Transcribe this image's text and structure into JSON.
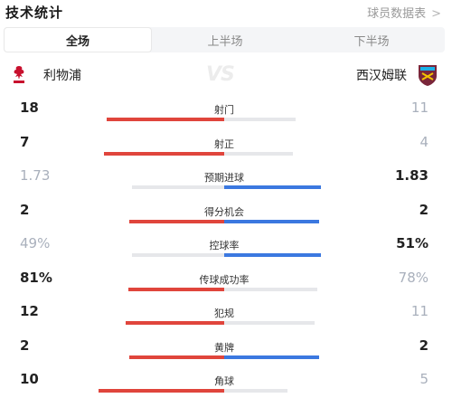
{
  "header": {
    "title": "技术统计",
    "link_label": "球员数据表",
    "link_icon": "chevron-right-icon"
  },
  "tabs": [
    {
      "label": "全场",
      "active": true
    },
    {
      "label": "上半场",
      "active": false
    },
    {
      "label": "下半场",
      "active": false
    }
  ],
  "teams": {
    "home": {
      "name": "利物浦",
      "crest": "liverpool-crest",
      "color": "#c8102e"
    },
    "vs": "VS",
    "away": {
      "name": "西汉姆联",
      "crest": "west-ham-crest",
      "color": "#7a263a"
    }
  },
  "colors": {
    "home_bar": "#e0453c",
    "away_bar": "#3b78e0",
    "empty_bar": "#e6e7ea"
  },
  "stats": [
    {
      "label": "射门",
      "home": "18",
      "away": "11",
      "home_value": 18,
      "away_value": 11
    },
    {
      "label": "射正",
      "home": "7",
      "away": "4",
      "home_value": 7,
      "away_value": 4
    },
    {
      "label": "预期进球",
      "home": "1.73",
      "away": "1.83",
      "home_value": 1.73,
      "away_value": 1.83
    },
    {
      "label": "得分机会",
      "home": "2",
      "away": "2",
      "home_value": 2,
      "away_value": 2
    },
    {
      "label": "控球率",
      "home": "49%",
      "away": "51%",
      "home_value": 49,
      "away_value": 51
    },
    {
      "label": "传球成功率",
      "home": "81%",
      "away": "78%",
      "home_value": 81,
      "away_value": 78
    },
    {
      "label": "犯规",
      "home": "12",
      "away": "11",
      "home_value": 12,
      "away_value": 11
    },
    {
      "label": "黄牌",
      "home": "2",
      "away": "2",
      "home_value": 2,
      "away_value": 2
    },
    {
      "label": "角球",
      "home": "10",
      "away": "5",
      "home_value": 10,
      "away_value": 5
    }
  ]
}
